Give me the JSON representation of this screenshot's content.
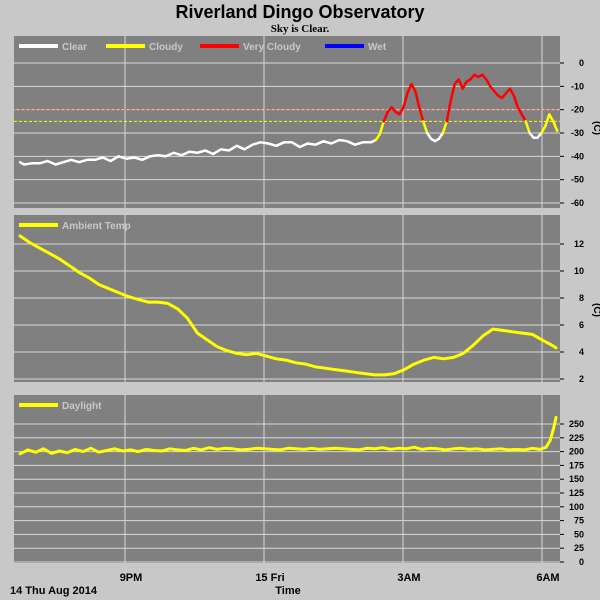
{
  "title": "Riverland Dingo Observatory",
  "subtitle": "Sky is Clear.",
  "footer": {
    "date": "14 Thu Aug 2014",
    "xlabel": "Time"
  },
  "x_ticks": [
    "9PM",
    "15 Fri",
    "3AM",
    "6AM"
  ],
  "colors": {
    "background": "#c8c8c8",
    "plot": "#808080",
    "grid": "#d8d8d8",
    "clear": "#ffffff",
    "cloudy": "#ffff00",
    "very_cloudy": "#ff0000",
    "wet": "#0000ff",
    "cloudy_threshold": "#ffff00",
    "very_cloudy_threshold": "#ff6060"
  },
  "chart_data": [
    {
      "type": "line",
      "name": "sky",
      "unit": "(C)",
      "y_ticks": [
        "0",
        "-10",
        "-20",
        "-30",
        "-40",
        "-50",
        "-60"
      ],
      "ylim": [
        -60,
        5
      ],
      "grid": true,
      "legend_position": "top-left",
      "legend": [
        "Clear",
        "Cloudy",
        "Very Cloudy",
        "Wet"
      ],
      "thresholds": [
        -20,
        -25
      ],
      "segments": [
        {
          "condition": "clear",
          "x": [
            0,
            0.1,
            0.3,
            0.5,
            0.7,
            0.9,
            1.1,
            1.3,
            1.5,
            1.7,
            1.9,
            2.1,
            2.3,
            2.5,
            2.7,
            2.9,
            3.1,
            3.3,
            3.5,
            3.7,
            3.9,
            4.1,
            4.3,
            4.5,
            4.7,
            4.9,
            5.1,
            5.3,
            5.5,
            5.7,
            5.9,
            6.1,
            6.3,
            6.5,
            6.7,
            6.9,
            7.1,
            7.3,
            7.5,
            7.7,
            7.9,
            8.1,
            8.3,
            8.5,
            8.7,
            8.9,
            9.03
          ],
          "y": [
            -42.5,
            -43.5,
            -43,
            -43,
            -42,
            -43.5,
            -42.5,
            -41.5,
            -42.5,
            -41.5,
            -41.5,
            -40.5,
            -42,
            -40,
            -41,
            -40.5,
            -41.5,
            -40,
            -39.5,
            -40,
            -38.5,
            -39.5,
            -38,
            -38.5,
            -37.5,
            -39,
            -37,
            -37.5,
            -35.5,
            -37,
            -35,
            -34,
            -34.5,
            -35.5,
            -34,
            -34,
            -36,
            -34.5,
            -35,
            -33.5,
            -34.5,
            -33,
            -33.5,
            -35,
            -34,
            -34,
            -33
          ]
        },
        {
          "condition": "cloudy",
          "x": [
            9.03,
            9.13,
            9.23
          ],
          "y": [
            -33,
            -30.5,
            -25
          ]
        },
        {
          "condition": "very_cloudy",
          "x": [
            9.23,
            9.33,
            9.43,
            9.53,
            9.63,
            9.73,
            9.83,
            9.93,
            10.03,
            10.13,
            10.23
          ],
          "y": [
            -25,
            -21,
            -19,
            -21,
            -22,
            -19,
            -13,
            -9,
            -12,
            -19,
            -25
          ]
        },
        {
          "condition": "cloudy",
          "x": [
            10.23,
            10.33
          ],
          "y": [
            -25,
            -30
          ]
        },
        {
          "condition": "clear",
          "x": [
            10.33,
            10.43,
            10.53,
            10.63,
            10.73
          ],
          "y": [
            -30,
            -32.5,
            -33.5,
            -32.5,
            -30
          ]
        },
        {
          "condition": "cloudy",
          "x": [
            10.73,
            10.83
          ],
          "y": [
            -30,
            -25
          ]
        },
        {
          "condition": "very_cloudy",
          "x": [
            10.83,
            10.93,
            11.03,
            11.13,
            11.23,
            11.33,
            11.43,
            11.53,
            11.63,
            11.73,
            11.83,
            11.93,
            12.03,
            12.13,
            12.23,
            12.33,
            12.43,
            12.53,
            12.63,
            12.73,
            12.83
          ],
          "y": [
            -25,
            -16,
            -9,
            -7,
            -11,
            -8,
            -7,
            -5,
            -6,
            -5,
            -7,
            -10,
            -12,
            -14,
            -15,
            -13,
            -11,
            -14,
            -19,
            -22,
            -25
          ]
        },
        {
          "condition": "cloudy",
          "x": [
            12.83,
            12.93
          ],
          "y": [
            -25,
            -30
          ]
        },
        {
          "condition": "clear",
          "x": [
            12.93,
            13.03,
            13.13,
            13.23
          ],
          "y": [
            -30,
            -32,
            -32,
            -30
          ]
        },
        {
          "condition": "cloudy",
          "x": [
            13.23,
            13.33,
            13.43,
            13.53,
            13.63
          ],
          "y": [
            -30,
            -27,
            -22,
            -25,
            -29
          ]
        }
      ]
    },
    {
      "type": "line",
      "name": "ambient",
      "unit": "(C)",
      "y_ticks": [
        "12",
        "10",
        "8",
        "6",
        "4",
        "2"
      ],
      "ylim": [
        1.5,
        13.3
      ],
      "grid": true,
      "legend_position": "top-left",
      "legend": [
        "Ambient Temp"
      ],
      "x": [
        0,
        0.25,
        0.5,
        0.75,
        1,
        1.25,
        1.5,
        1.75,
        2,
        2.25,
        2.5,
        2.75,
        3,
        3.25,
        3.5,
        3.75,
        4,
        4.25,
        4.5,
        4.75,
        5,
        5.25,
        5.5,
        5.75,
        6,
        6.25,
        6.5,
        6.75,
        7,
        7.25,
        7.5,
        7.75,
        8,
        8.25,
        8.5,
        8.75,
        9,
        9.25,
        9.5,
        9.75,
        10,
        10.25,
        10.5,
        10.75,
        11,
        11.25,
        11.5,
        11.75,
        12,
        12.25,
        12.5,
        12.75,
        13,
        13.25,
        13.5,
        13.6
      ],
      "y": [
        12.6,
        12.1,
        11.7,
        11.3,
        10.9,
        10.4,
        9.9,
        9.5,
        9.0,
        8.7,
        8.4,
        8.1,
        7.9,
        7.7,
        7.7,
        7.6,
        7.2,
        6.5,
        5.4,
        4.9,
        4.4,
        4.1,
        3.9,
        3.8,
        3.9,
        3.7,
        3.5,
        3.4,
        3.2,
        3.1,
        2.9,
        2.8,
        2.7,
        2.6,
        2.5,
        2.4,
        2.3,
        2.3,
        2.4,
        2.7,
        3.1,
        3.4,
        3.6,
        3.5,
        3.6,
        3.9,
        4.5,
        5.2,
        5.7,
        5.6,
        5.5,
        5.4,
        5.3,
        4.9,
        4.5,
        4.3
      ]
    },
    {
      "type": "line",
      "name": "daylight",
      "unit": "",
      "y_ticks": [
        "250",
        "225",
        "200",
        "175",
        "150",
        "125",
        "100",
        "75",
        "50",
        "25",
        "0"
      ],
      "ylim": [
        0,
        268
      ],
      "grid": true,
      "legend_position": "top-left",
      "legend": [
        "Daylight"
      ],
      "x": [
        0,
        0.2,
        0.4,
        0.6,
        0.8,
        1,
        1.2,
        1.4,
        1.6,
        1.8,
        2,
        2.2,
        2.4,
        2.6,
        2.8,
        3,
        3.2,
        3.4,
        3.6,
        3.8,
        4,
        4.2,
        4.4,
        4.6,
        4.8,
        5,
        5.2,
        5.4,
        5.6,
        5.8,
        6,
        6.2,
        6.4,
        6.6,
        6.8,
        7,
        7.2,
        7.4,
        7.6,
        7.8,
        8,
        8.2,
        8.4,
        8.6,
        8.8,
        9,
        9.2,
        9.4,
        9.6,
        9.8,
        10,
        10.2,
        10.4,
        10.6,
        10.8,
        11,
        11.2,
        11.4,
        11.6,
        11.8,
        12,
        12.2,
        12.4,
        12.6,
        12.8,
        13,
        13.2,
        13.35,
        13.45,
        13.55,
        13.6
      ],
      "y": [
        196,
        203,
        199,
        205,
        197,
        201,
        198,
        204,
        200,
        206,
        199,
        202,
        205,
        201,
        203,
        200,
        204,
        202,
        201,
        205,
        203,
        202,
        206,
        203,
        207,
        204,
        206,
        205,
        203,
        204,
        206,
        205,
        204,
        203,
        206,
        205,
        204,
        206,
        204,
        205,
        206,
        205,
        204,
        203,
        206,
        205,
        207,
        204,
        206,
        205,
        208,
        204,
        206,
        205,
        203,
        205,
        206,
        204,
        205,
        203,
        204,
        205,
        203,
        204,
        203,
        206,
        204,
        208,
        220,
        245,
        262
      ]
    }
  ]
}
